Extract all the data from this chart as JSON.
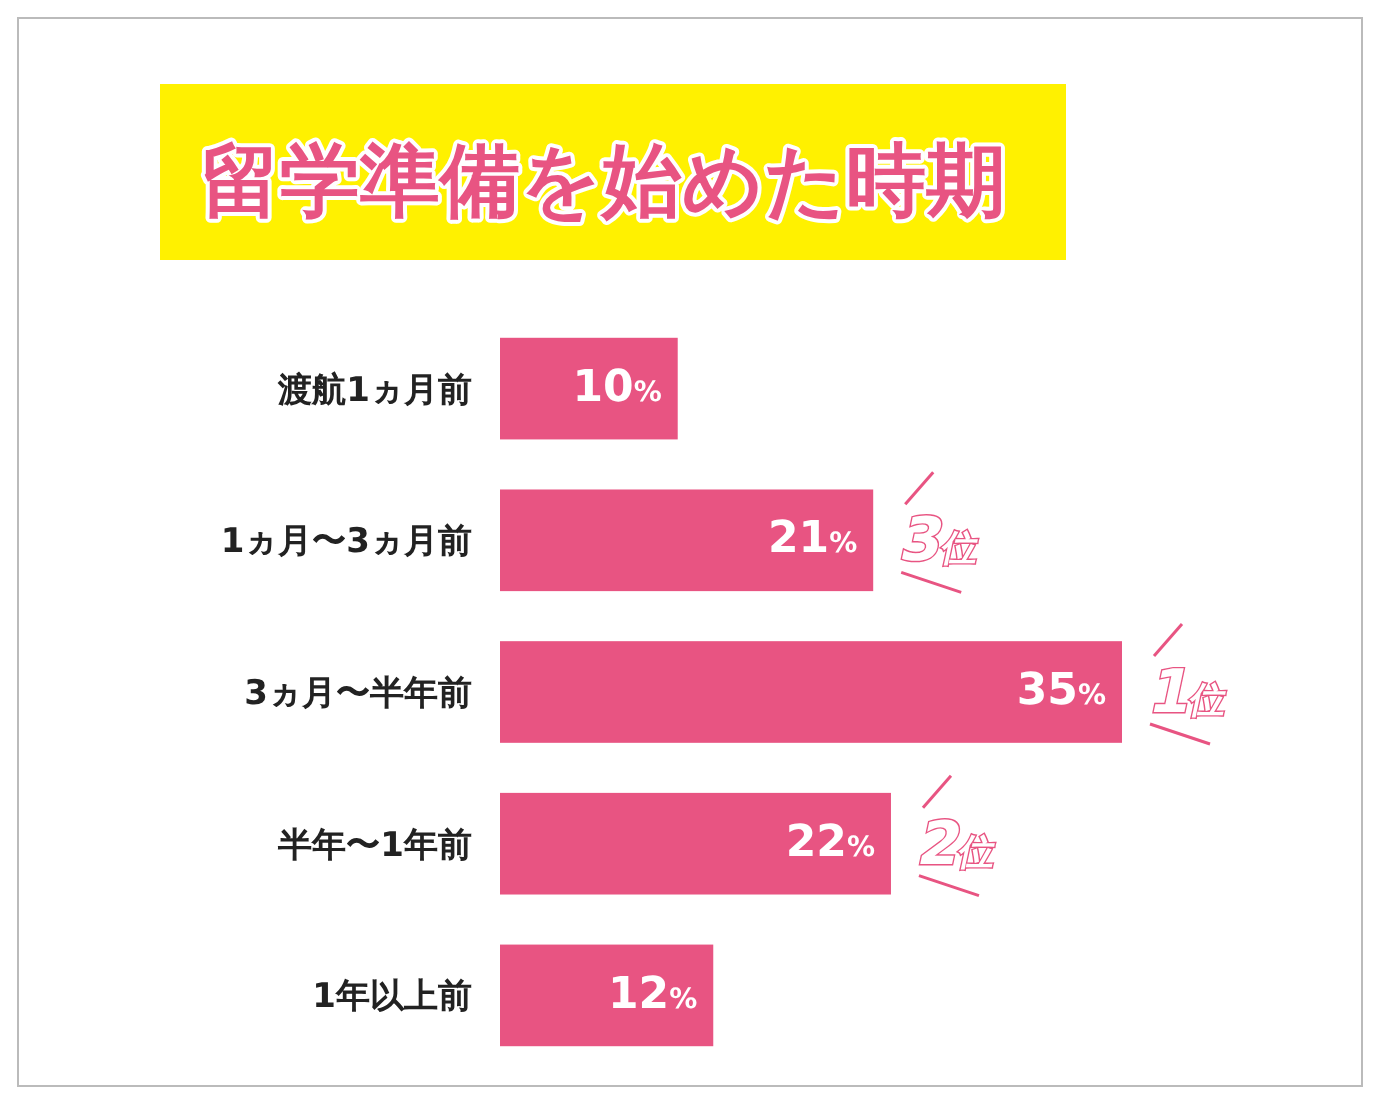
{
  "chart_data": {
    "type": "bar",
    "orientation": "horizontal",
    "title": "留学準備を始めた時期",
    "categories": [
      "渡航1ヵ月前",
      "1ヵ月〜3ヵ月前",
      "3ヵ月〜半年前",
      "半年〜1年前",
      "1年以上前"
    ],
    "values": [
      10,
      21,
      35,
      22,
      12
    ],
    "color": "#e85482",
    "value_labels": [
      "10%",
      "21%",
      "35%",
      "22%",
      "12%"
    ],
    "annotations": [
      {
        "text": "3位",
        "x": 21,
        "y": "1ヵ月〜3ヵ月前"
      },
      {
        "text": "1位",
        "x": 35,
        "y": "3ヵ月〜半年前"
      },
      {
        "text": "2位",
        "x": 22,
        "y": "半年〜1年前"
      }
    ]
  }
}
